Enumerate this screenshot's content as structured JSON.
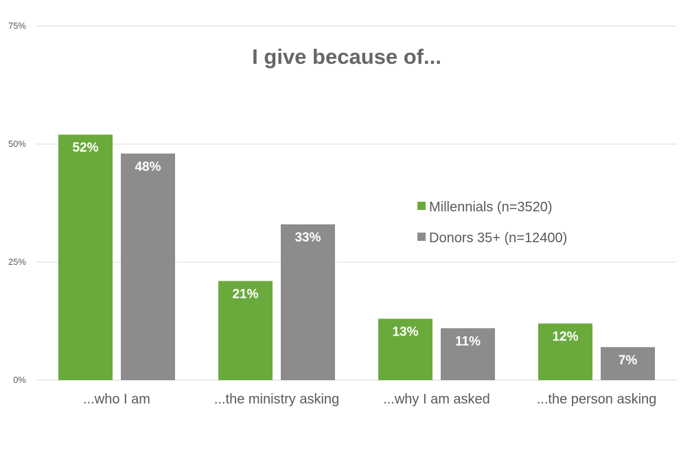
{
  "chart_data": {
    "type": "bar",
    "title": "I give because of...",
    "categories": [
      "...who I am",
      "...the ministry asking",
      "...why I am asked",
      "...the person asking"
    ],
    "series": [
      {
        "name": "Millennials (n=3520)",
        "values": [
          52,
          21,
          13,
          12
        ],
        "color": "#6aaa3c"
      },
      {
        "name": "Donors 35+ (n=12400)",
        "values": [
          48,
          33,
          11,
          7
        ],
        "color": "#8c8c8c"
      }
    ],
    "data_labels": [
      [
        "52%",
        "21%",
        "13%",
        "12%"
      ],
      [
        "48%",
        "33%",
        "11%",
        "7%"
      ]
    ],
    "ylim": [
      0,
      75
    ],
    "yticks": [
      0,
      25,
      50,
      75
    ],
    "ytick_labels": [
      "0%",
      "25%",
      "50%",
      "75%"
    ],
    "xlabel": "",
    "ylabel": "",
    "grid": true,
    "legend_position": "right"
  }
}
